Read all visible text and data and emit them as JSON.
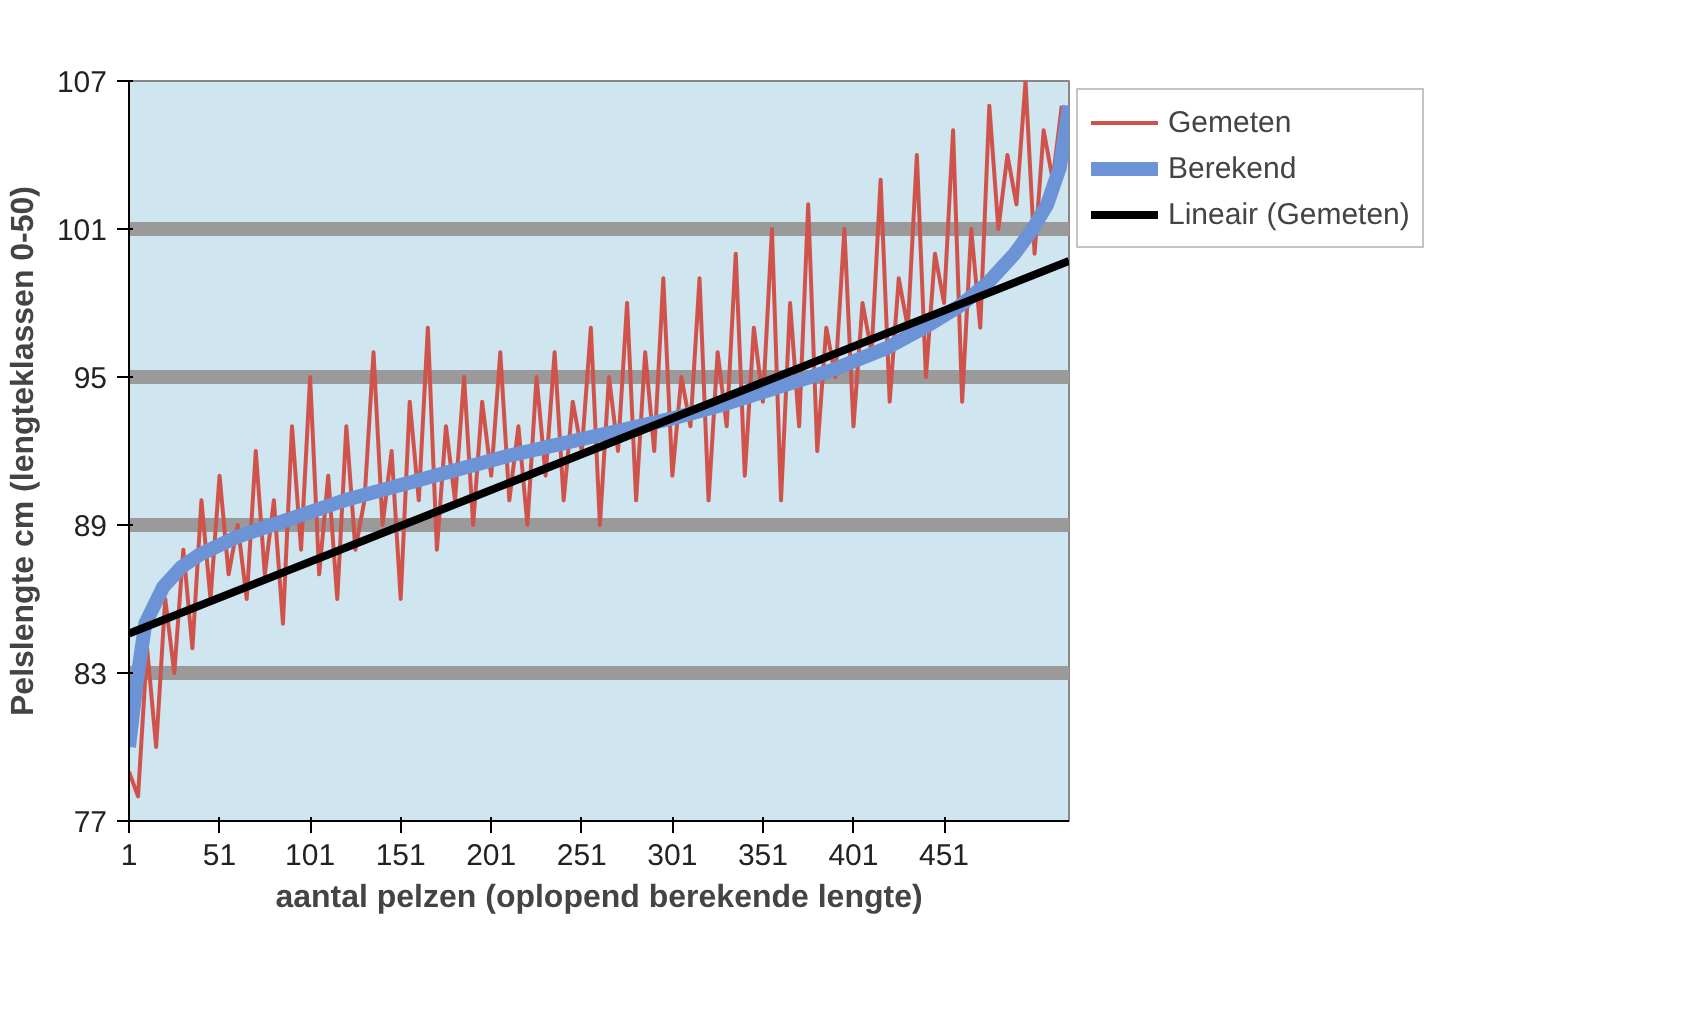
{
  "chart_data": {
    "type": "line",
    "xlabel": "aantal pelzen (oplopend berekende lengte)",
    "ylabel": "Pelslengte cm (lengteklassen 0-50)",
    "xlim": [
      1,
      520
    ],
    "ylim": [
      77,
      107
    ],
    "xticks": [
      1,
      51,
      101,
      151,
      201,
      251,
      301,
      351,
      401,
      451
    ],
    "yticks": [
      77,
      83,
      89,
      95,
      101,
      107
    ],
    "grid": "y",
    "legend": "right",
    "x": [
      1,
      6,
      11,
      16,
      21,
      26,
      31,
      36,
      41,
      46,
      51,
      56,
      61,
      66,
      71,
      76,
      81,
      86,
      91,
      96,
      101,
      106,
      111,
      116,
      121,
      126,
      131,
      136,
      141,
      146,
      151,
      156,
      161,
      166,
      171,
      176,
      181,
      186,
      191,
      196,
      201,
      206,
      211,
      216,
      221,
      226,
      231,
      236,
      241,
      246,
      251,
      256,
      261,
      266,
      271,
      276,
      281,
      286,
      291,
      296,
      301,
      306,
      311,
      316,
      321,
      326,
      331,
      336,
      341,
      346,
      351,
      356,
      361,
      366,
      371,
      376,
      381,
      386,
      391,
      396,
      401,
      406,
      411,
      416,
      421,
      426,
      431,
      436,
      441,
      446,
      451,
      456,
      461,
      466,
      471,
      476,
      481,
      486,
      491,
      496,
      501,
      506,
      511,
      516
    ],
    "series": [
      {
        "name": "Gemeten",
        "color": "#d0534b",
        "values": [
          79,
          78,
          84,
          80,
          86,
          83,
          88,
          84,
          90,
          86,
          91,
          87,
          89,
          86,
          92,
          87,
          90,
          85,
          93,
          88,
          95,
          87,
          91,
          86,
          93,
          88,
          90,
          96,
          89,
          92,
          86,
          94,
          90,
          97,
          88,
          93,
          90,
          95,
          89,
          94,
          91,
          96,
          90,
          93,
          89,
          95,
          91,
          96,
          90,
          94,
          92,
          97,
          89,
          95,
          92,
          98,
          90,
          96,
          92,
          99,
          91,
          95,
          93,
          99,
          90,
          96,
          93,
          100,
          91,
          97,
          94,
          101,
          90,
          98,
          93,
          102,
          92,
          97,
          95,
          101,
          93,
          98,
          96,
          103,
          94,
          99,
          97,
          104,
          95,
          100,
          98,
          105,
          94,
          101,
          97,
          106,
          101,
          104,
          102,
          107,
          100,
          105,
          103,
          106
        ]
      },
      {
        "name": "Berekend",
        "color": "#6b93d6",
        "x": [
          1,
          5,
          10,
          20,
          30,
          40,
          60,
          80,
          100,
          120,
          150,
          180,
          210,
          240,
          270,
          300,
          330,
          360,
          390,
          420,
          440,
          460,
          475,
          490,
          500,
          508,
          515,
          520
        ],
        "values": [
          80,
          82.5,
          85,
          86.5,
          87.3,
          87.8,
          88.5,
          89,
          89.5,
          90,
          90.6,
          91.2,
          91.8,
          92.3,
          92.8,
          93.3,
          93.9,
          94.6,
          95.3,
          96.2,
          97,
          97.9,
          98.8,
          100,
          101,
          102,
          103.5,
          106
        ]
      },
      {
        "name": "Lineair (Gemeten)",
        "color": "#000000",
        "type": "line",
        "x": [
          1,
          520
        ],
        "values": [
          84.6,
          99.7
        ]
      }
    ]
  }
}
